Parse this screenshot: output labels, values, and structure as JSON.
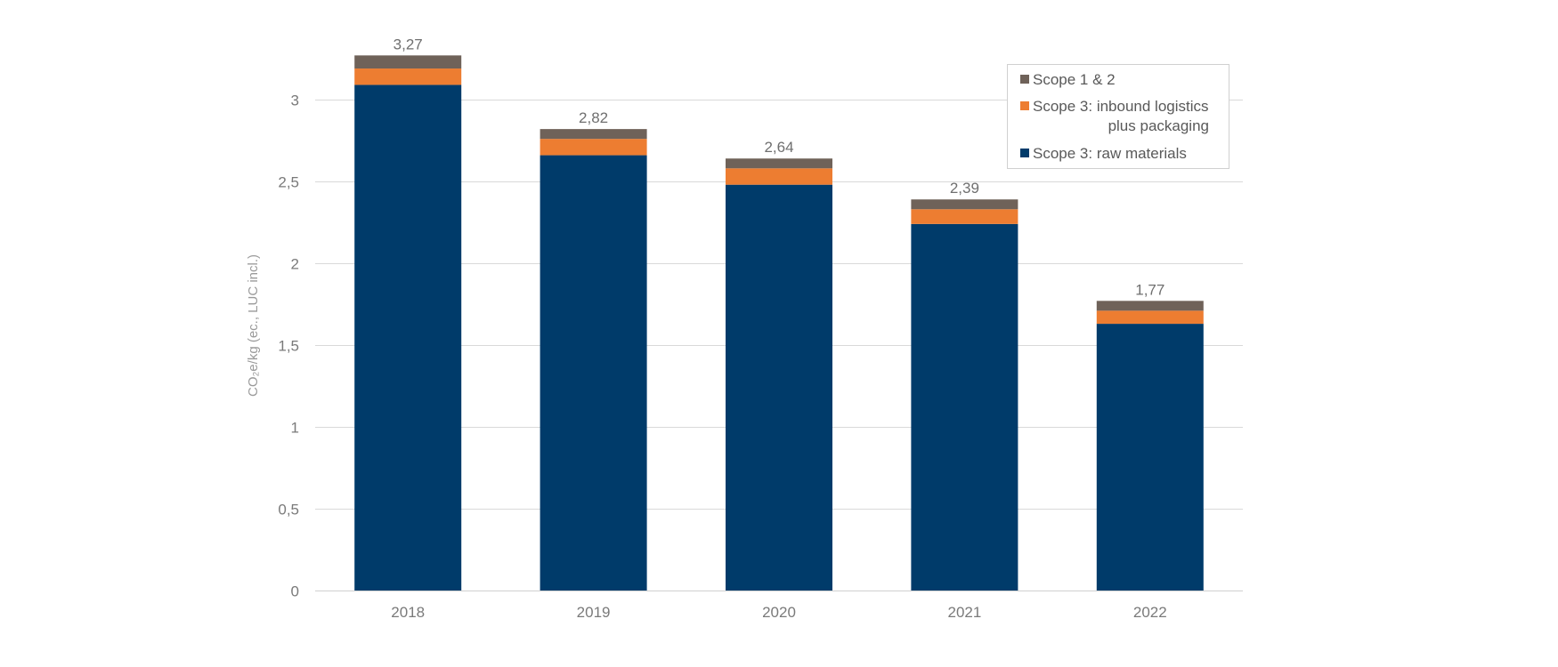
{
  "chart_data": {
    "type": "bar",
    "stacked": true,
    "categories": [
      "2018",
      "2019",
      "2020",
      "2021",
      "2022"
    ],
    "series": [
      {
        "name": "Scope 3: raw materials",
        "color": "#003b6a",
        "values": [
          3.09,
          2.66,
          2.48,
          2.24,
          1.63
        ]
      },
      {
        "name": "Scope 3: inbound logistics plus packaging",
        "legend_lines": [
          "Scope 3: inbound logistics",
          "plus packaging"
        ],
        "color": "#ed7d31",
        "values": [
          0.1,
          0.1,
          0.1,
          0.09,
          0.08
        ]
      },
      {
        "name": "Scope 1 & 2",
        "color": "#6f6259",
        "values": [
          0.08,
          0.06,
          0.06,
          0.06,
          0.06
        ]
      }
    ],
    "totals": [
      3.27,
      2.82,
      2.64,
      2.39,
      1.77
    ],
    "total_labels": [
      "3,27",
      "2,82",
      "2,64",
      "2,39",
      "1,77"
    ],
    "ylabel": "CO₂e/kg (ec., LUC incl.)",
    "xlabel": "",
    "ylim": [
      0,
      3.5
    ],
    "yticks": [
      0,
      0.5,
      1,
      1.5,
      2,
      2.5,
      3
    ],
    "ytick_labels": [
      "0",
      "0,5",
      "1",
      "1,5",
      "2",
      "2,5",
      "3"
    ],
    "legend_order": [
      2,
      1,
      0
    ],
    "legend_position": "top-right",
    "grid": true
  }
}
